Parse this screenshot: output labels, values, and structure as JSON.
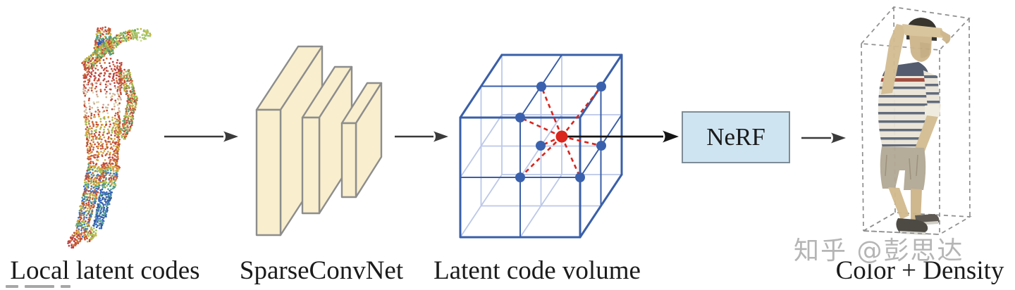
{
  "figure": {
    "stages": [
      {
        "label": "Local latent codes"
      },
      {
        "label": "SparseConvNet"
      },
      {
        "label": "Latent code volume"
      },
      {
        "label": "Color + Density"
      }
    ],
    "nerf": {
      "label": "NeRF"
    },
    "watermark": {
      "text": "知乎 @彭思达"
    }
  },
  "colors": {
    "cube_blue": "#3a5fa8",
    "cube_blue_light": "#bcc8e8",
    "dot_blue": "#3a61ad",
    "accent_red": "#d9251d",
    "slab_fill": "#f9eecd",
    "slab_border": "#8d8d8d",
    "nerf_fill": "#cfe4f1",
    "nerf_border": "#7e8c96",
    "arrow_dark": "#3a3a3a",
    "arrow_black": "#141414",
    "dashed_box_gray": "#8f8f8f",
    "text_black": "#1b1b1b",
    "watermark_gray": "#b5b5b5"
  }
}
